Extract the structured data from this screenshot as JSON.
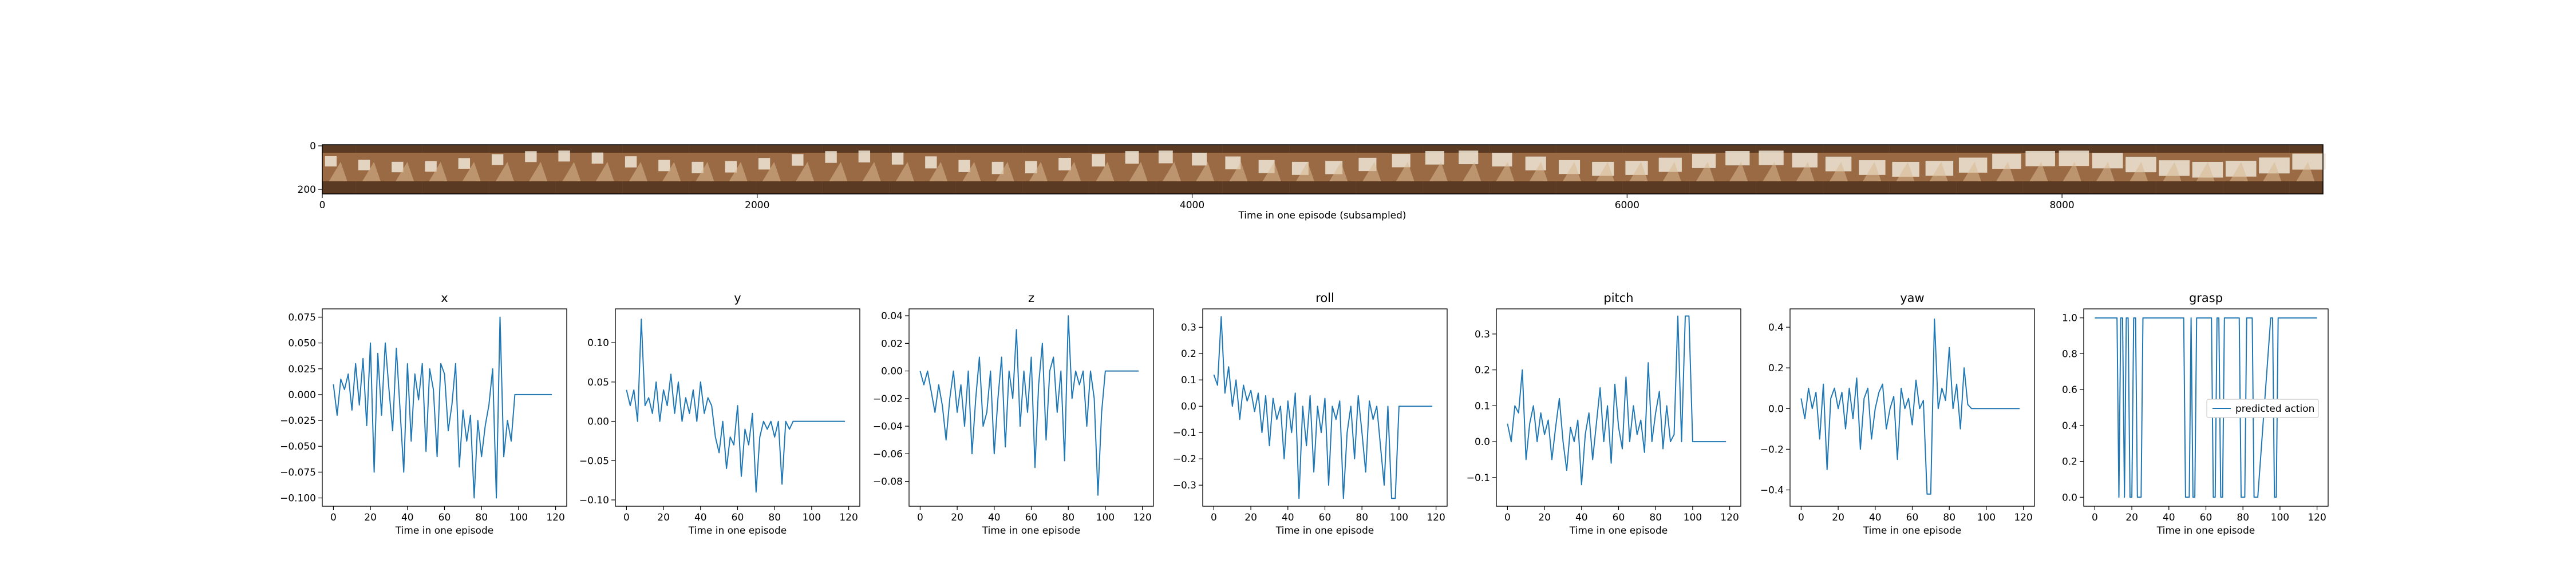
{
  "strip": {
    "xlabel": "Time in one episode (subsampled)",
    "xticks": [
      "0",
      "2000",
      "4000",
      "6000",
      "8000"
    ],
    "xtick_values": [
      0,
      2000,
      4000,
      6000,
      8000
    ],
    "xlim": [
      0,
      9200
    ],
    "yticks": [
      "0",
      "200"
    ],
    "frame_count": 60,
    "colors": {
      "frame_dark": "#5a3a22",
      "frame_mid": "#9a6a44",
      "frame_light": "#d8b894",
      "arm": "#efe6d6"
    }
  },
  "legend": {
    "label": "predicted action"
  },
  "line_color": "#1f77b4",
  "chart_data": [
    {
      "type": "line",
      "title": "x",
      "xlabel": "Time in one episode",
      "xticks": [
        0,
        20,
        40,
        60,
        80,
        100,
        120
      ],
      "xlim": [
        -6,
        126
      ],
      "yticks": [
        -0.1,
        -0.075,
        -0.05,
        -0.025,
        0.0,
        0.025,
        0.05,
        0.075
      ],
      "ytick_labels": [
        "−0.100",
        "−0.075",
        "−0.050",
        "−0.025",
        "0.000",
        "0.025",
        "0.050",
        "0.075"
      ],
      "ylim": [
        -0.108,
        0.083
      ],
      "x": [
        0,
        2,
        4,
        6,
        8,
        10,
        12,
        14,
        16,
        18,
        20,
        22,
        24,
        26,
        28,
        30,
        32,
        34,
        36,
        38,
        40,
        42,
        44,
        46,
        48,
        50,
        52,
        54,
        56,
        58,
        60,
        62,
        64,
        66,
        68,
        70,
        72,
        74,
        76,
        78,
        80,
        82,
        84,
        86,
        88,
        90,
        92,
        94,
        96,
        98,
        100,
        102,
        104,
        106,
        108,
        110,
        112,
        114,
        116,
        118
      ],
      "values": [
        0.01,
        -0.02,
        0.015,
        0.005,
        0.02,
        -0.015,
        0.03,
        -0.01,
        0.035,
        -0.03,
        0.05,
        -0.075,
        0.04,
        -0.02,
        0.05,
        0.005,
        -0.035,
        0.045,
        -0.015,
        -0.075,
        0.03,
        -0.045,
        0.02,
        -0.005,
        0.03,
        -0.055,
        0.025,
        0.005,
        -0.06,
        0.03,
        0.02,
        -0.035,
        -0.01,
        0.03,
        -0.07,
        -0.015,
        -0.045,
        -0.02,
        -0.1,
        -0.025,
        -0.06,
        -0.03,
        -0.01,
        0.025,
        -0.1,
        0.075,
        -0.06,
        -0.025,
        -0.045,
        0.0,
        0.0,
        0.0,
        0.0,
        0.0,
        0.0,
        0.0,
        0.0,
        0.0,
        0.0,
        0.0
      ]
    },
    {
      "type": "line",
      "title": "y",
      "xlabel": "Time in one episode",
      "xticks": [
        0,
        20,
        40,
        60,
        80,
        100,
        120
      ],
      "xlim": [
        -6,
        126
      ],
      "yticks": [
        -0.1,
        -0.05,
        0.0,
        0.05,
        0.1
      ],
      "ytick_labels": [
        "−0.10",
        "−0.05",
        "0.00",
        "0.05",
        "0.10"
      ],
      "ylim": [
        -0.108,
        0.143
      ],
      "x": [
        0,
        2,
        4,
        6,
        8,
        10,
        12,
        14,
        16,
        18,
        20,
        22,
        24,
        26,
        28,
        30,
        32,
        34,
        36,
        38,
        40,
        42,
        44,
        46,
        48,
        50,
        52,
        54,
        56,
        58,
        60,
        62,
        64,
        66,
        68,
        70,
        72,
        74,
        76,
        78,
        80,
        82,
        84,
        86,
        88,
        90,
        92,
        94,
        96,
        98,
        100,
        102,
        104,
        106,
        108,
        110,
        112,
        114,
        116,
        118
      ],
      "values": [
        0.04,
        0.02,
        0.04,
        0.0,
        0.13,
        0.02,
        0.03,
        0.01,
        0.05,
        0.0,
        0.04,
        0.02,
        0.06,
        0.01,
        0.05,
        0.0,
        0.03,
        0.01,
        0.04,
        0.0,
        0.05,
        0.01,
        0.03,
        0.02,
        -0.02,
        -0.04,
        0.0,
        -0.06,
        -0.02,
        -0.03,
        0.02,
        -0.07,
        -0.01,
        -0.03,
        0.01,
        -0.09,
        -0.02,
        0.0,
        -0.01,
        0.0,
        -0.02,
        0.0,
        -0.08,
        0.0,
        -0.01,
        0.0,
        0.0,
        0.0,
        0.0,
        0.0,
        0.0,
        0.0,
        0.0,
        0.0,
        0.0,
        0.0,
        0.0,
        0.0,
        0.0,
        0.0
      ]
    },
    {
      "type": "line",
      "title": "z",
      "xlabel": "Time in one episode",
      "xticks": [
        0,
        20,
        40,
        60,
        80,
        100,
        120
      ],
      "xlim": [
        -6,
        126
      ],
      "yticks": [
        -0.08,
        -0.06,
        -0.04,
        -0.02,
        0.0,
        0.02,
        0.04
      ],
      "ytick_labels": [
        "−0.08",
        "−0.06",
        "−0.04",
        "−0.02",
        "0.00",
        "0.02",
        "0.04"
      ],
      "ylim": [
        -0.098,
        0.045
      ],
      "x": [
        0,
        2,
        4,
        6,
        8,
        10,
        12,
        14,
        16,
        18,
        20,
        22,
        24,
        26,
        28,
        30,
        32,
        34,
        36,
        38,
        40,
        42,
        44,
        46,
        48,
        50,
        52,
        54,
        56,
        58,
        60,
        62,
        64,
        66,
        68,
        70,
        72,
        74,
        76,
        78,
        80,
        82,
        84,
        86,
        88,
        90,
        92,
        94,
        96,
        98,
        100,
        102,
        104,
        106,
        108,
        110,
        112,
        114,
        116,
        118
      ],
      "values": [
        0.0,
        -0.01,
        0.0,
        -0.015,
        -0.03,
        -0.01,
        -0.025,
        -0.05,
        -0.02,
        0.0,
        -0.03,
        -0.01,
        -0.04,
        0.0,
        -0.06,
        -0.02,
        0.01,
        -0.04,
        -0.03,
        0.0,
        -0.06,
        -0.02,
        0.01,
        -0.055,
        0.0,
        -0.02,
        0.03,
        -0.04,
        0.0,
        -0.03,
        0.01,
        -0.07,
        -0.01,
        0.02,
        -0.05,
        0.0,
        0.01,
        -0.03,
        0.0,
        -0.065,
        0.04,
        -0.02,
        0.0,
        -0.01,
        0.0,
        -0.04,
        0.0,
        -0.02,
        -0.09,
        -0.03,
        0.0,
        0.0,
        0.0,
        0.0,
        0.0,
        0.0,
        0.0,
        0.0,
        0.0,
        0.0
      ]
    },
    {
      "type": "line",
      "title": "roll",
      "xlabel": "Time in one episode",
      "xticks": [
        0,
        20,
        40,
        60,
        80,
        100,
        120
      ],
      "xlim": [
        -6,
        126
      ],
      "yticks": [
        -0.3,
        -0.2,
        -0.1,
        0.0,
        0.1,
        0.2,
        0.3
      ],
      "ytick_labels": [
        "−0.3",
        "−0.2",
        "−0.1",
        "0.0",
        "0.1",
        "0.2",
        "0.3"
      ],
      "ylim": [
        -0.38,
        0.37
      ],
      "x": [
        0,
        2,
        4,
        6,
        8,
        10,
        12,
        14,
        16,
        18,
        20,
        22,
        24,
        26,
        28,
        30,
        32,
        34,
        36,
        38,
        40,
        42,
        44,
        46,
        48,
        50,
        52,
        54,
        56,
        58,
        60,
        62,
        64,
        66,
        68,
        70,
        72,
        74,
        76,
        78,
        80,
        82,
        84,
        86,
        88,
        90,
        92,
        94,
        96,
        98,
        100,
        102,
        104,
        106,
        108,
        110,
        112,
        114,
        116,
        118
      ],
      "values": [
        0.12,
        0.08,
        0.34,
        0.05,
        0.15,
        0.0,
        0.1,
        -0.05,
        0.08,
        0.02,
        0.06,
        -0.02,
        0.05,
        -0.1,
        0.04,
        -0.15,
        0.03,
        -0.05,
        0.0,
        -0.2,
        0.02,
        -0.1,
        0.05,
        -0.35,
        0.0,
        -0.15,
        0.04,
        -0.25,
        0.0,
        -0.1,
        0.03,
        -0.3,
        0.0,
        -0.05,
        0.02,
        -0.35,
        -0.1,
        0.0,
        -0.2,
        0.04,
        -0.1,
        -0.25,
        0.02,
        -0.05,
        0.0,
        -0.15,
        -0.3,
        0.0,
        -0.35,
        -0.35,
        0.0,
        0.0,
        0.0,
        0.0,
        0.0,
        0.0,
        0.0,
        0.0,
        0.0,
        0.0
      ]
    },
    {
      "type": "line",
      "title": "pitch",
      "xlabel": "Time in one episode",
      "xticks": [
        0,
        20,
        40,
        60,
        80,
        100,
        120
      ],
      "xlim": [
        -6,
        126
      ],
      "yticks": [
        -0.1,
        0.0,
        0.1,
        0.2,
        0.3
      ],
      "ytick_labels": [
        "−0.1",
        "0.0",
        "0.1",
        "0.2",
        "0.3"
      ],
      "ylim": [
        -0.18,
        0.37
      ],
      "x": [
        0,
        2,
        4,
        6,
        8,
        10,
        12,
        14,
        16,
        18,
        20,
        22,
        24,
        26,
        28,
        30,
        32,
        34,
        36,
        38,
        40,
        42,
        44,
        46,
        48,
        50,
        52,
        54,
        56,
        58,
        60,
        62,
        64,
        66,
        68,
        70,
        72,
        74,
        76,
        78,
        80,
        82,
        84,
        86,
        88,
        90,
        92,
        94,
        96,
        98,
        100,
        102,
        104,
        106,
        108,
        110,
        112,
        114,
        116,
        118
      ],
      "values": [
        0.05,
        0.0,
        0.1,
        0.08,
        0.2,
        -0.05,
        0.05,
        0.1,
        0.0,
        0.08,
        0.02,
        0.06,
        -0.05,
        0.04,
        0.12,
        0.0,
        -0.08,
        0.04,
        0.0,
        0.06,
        -0.12,
        0.02,
        0.08,
        -0.05,
        0.05,
        0.15,
        0.0,
        0.1,
        -0.06,
        0.16,
        0.04,
        -0.02,
        0.18,
        0.0,
        0.1,
        0.02,
        0.06,
        -0.03,
        0.22,
        0.0,
        0.08,
        0.14,
        -0.02,
        0.1,
        0.0,
        0.02,
        0.35,
        0.0,
        0.35,
        0.35,
        0.0,
        0.0,
        0.0,
        0.0,
        0.0,
        0.0,
        0.0,
        0.0,
        0.0,
        0.0
      ]
    },
    {
      "type": "line",
      "title": "yaw",
      "xlabel": "Time in one episode",
      "xticks": [
        0,
        20,
        40,
        60,
        80,
        100,
        120
      ],
      "xlim": [
        -6,
        126
      ],
      "yticks": [
        -0.4,
        -0.2,
        0.0,
        0.2,
        0.4
      ],
      "ytick_labels": [
        "−0.4",
        "−0.2",
        "0.0",
        "0.2",
        "0.4"
      ],
      "ylim": [
        -0.48,
        0.49
      ],
      "x": [
        0,
        2,
        4,
        6,
        8,
        10,
        12,
        14,
        16,
        18,
        20,
        22,
        24,
        26,
        28,
        30,
        32,
        34,
        36,
        38,
        40,
        42,
        44,
        46,
        48,
        50,
        52,
        54,
        56,
        58,
        60,
        62,
        64,
        66,
        68,
        70,
        72,
        74,
        76,
        78,
        80,
        82,
        84,
        86,
        88,
        90,
        92,
        94,
        96,
        98,
        100,
        102,
        104,
        106,
        108,
        110,
        112,
        114,
        116,
        118
      ],
      "values": [
        0.05,
        -0.05,
        0.1,
        0.0,
        0.08,
        -0.15,
        0.12,
        -0.3,
        0.05,
        0.1,
        0.0,
        0.08,
        -0.1,
        0.1,
        -0.05,
        0.15,
        -0.2,
        0.05,
        0.1,
        -0.15,
        0.0,
        0.08,
        0.12,
        -0.1,
        0.0,
        0.06,
        -0.25,
        0.1,
        0.0,
        0.05,
        -0.08,
        0.14,
        0.0,
        0.04,
        -0.42,
        -0.42,
        0.44,
        0.0,
        0.1,
        0.04,
        0.3,
        0.0,
        0.12,
        -0.1,
        0.2,
        0.02,
        0.0,
        0.0,
        0.0,
        0.0,
        0.0,
        0.0,
        0.0,
        0.0,
        0.0,
        0.0,
        0.0,
        0.0,
        0.0,
        0.0
      ]
    },
    {
      "type": "line",
      "title": "grasp",
      "xlabel": "Time in one episode",
      "xticks": [
        0,
        20,
        40,
        60,
        80,
        100,
        120
      ],
      "xlim": [
        -6,
        126
      ],
      "yticks": [
        0.0,
        0.2,
        0.4,
        0.6,
        0.8,
        1.0
      ],
      "ytick_labels": [
        "0.0",
        "0.2",
        "0.4",
        "0.6",
        "0.8",
        "1.0"
      ],
      "ylim": [
        -0.05,
        1.05
      ],
      "x": [
        0,
        12,
        13,
        14,
        15,
        16,
        17,
        18,
        19,
        20,
        21,
        22,
        23,
        24,
        25,
        26,
        48,
        49,
        50,
        51,
        52,
        53,
        54,
        55,
        56,
        63,
        64,
        65,
        66,
        67,
        68,
        69,
        70,
        71,
        72,
        78,
        79,
        80,
        81,
        82,
        83,
        85,
        86,
        87,
        88,
        95,
        96,
        97,
        98,
        99,
        100,
        101,
        102,
        120
      ],
      "values": [
        1,
        1,
        0,
        1,
        1,
        0,
        1,
        1,
        0,
        0,
        1,
        1,
        0,
        0,
        0,
        1,
        1,
        0,
        0,
        0,
        1,
        0,
        0,
        1,
        1,
        1,
        0,
        0,
        1,
        1,
        0,
        0,
        1,
        1,
        1,
        1,
        0,
        0,
        0,
        1,
        1,
        1,
        0,
        0,
        0,
        1,
        1,
        0,
        0,
        1,
        1,
        1,
        1,
        1
      ]
    }
  ]
}
